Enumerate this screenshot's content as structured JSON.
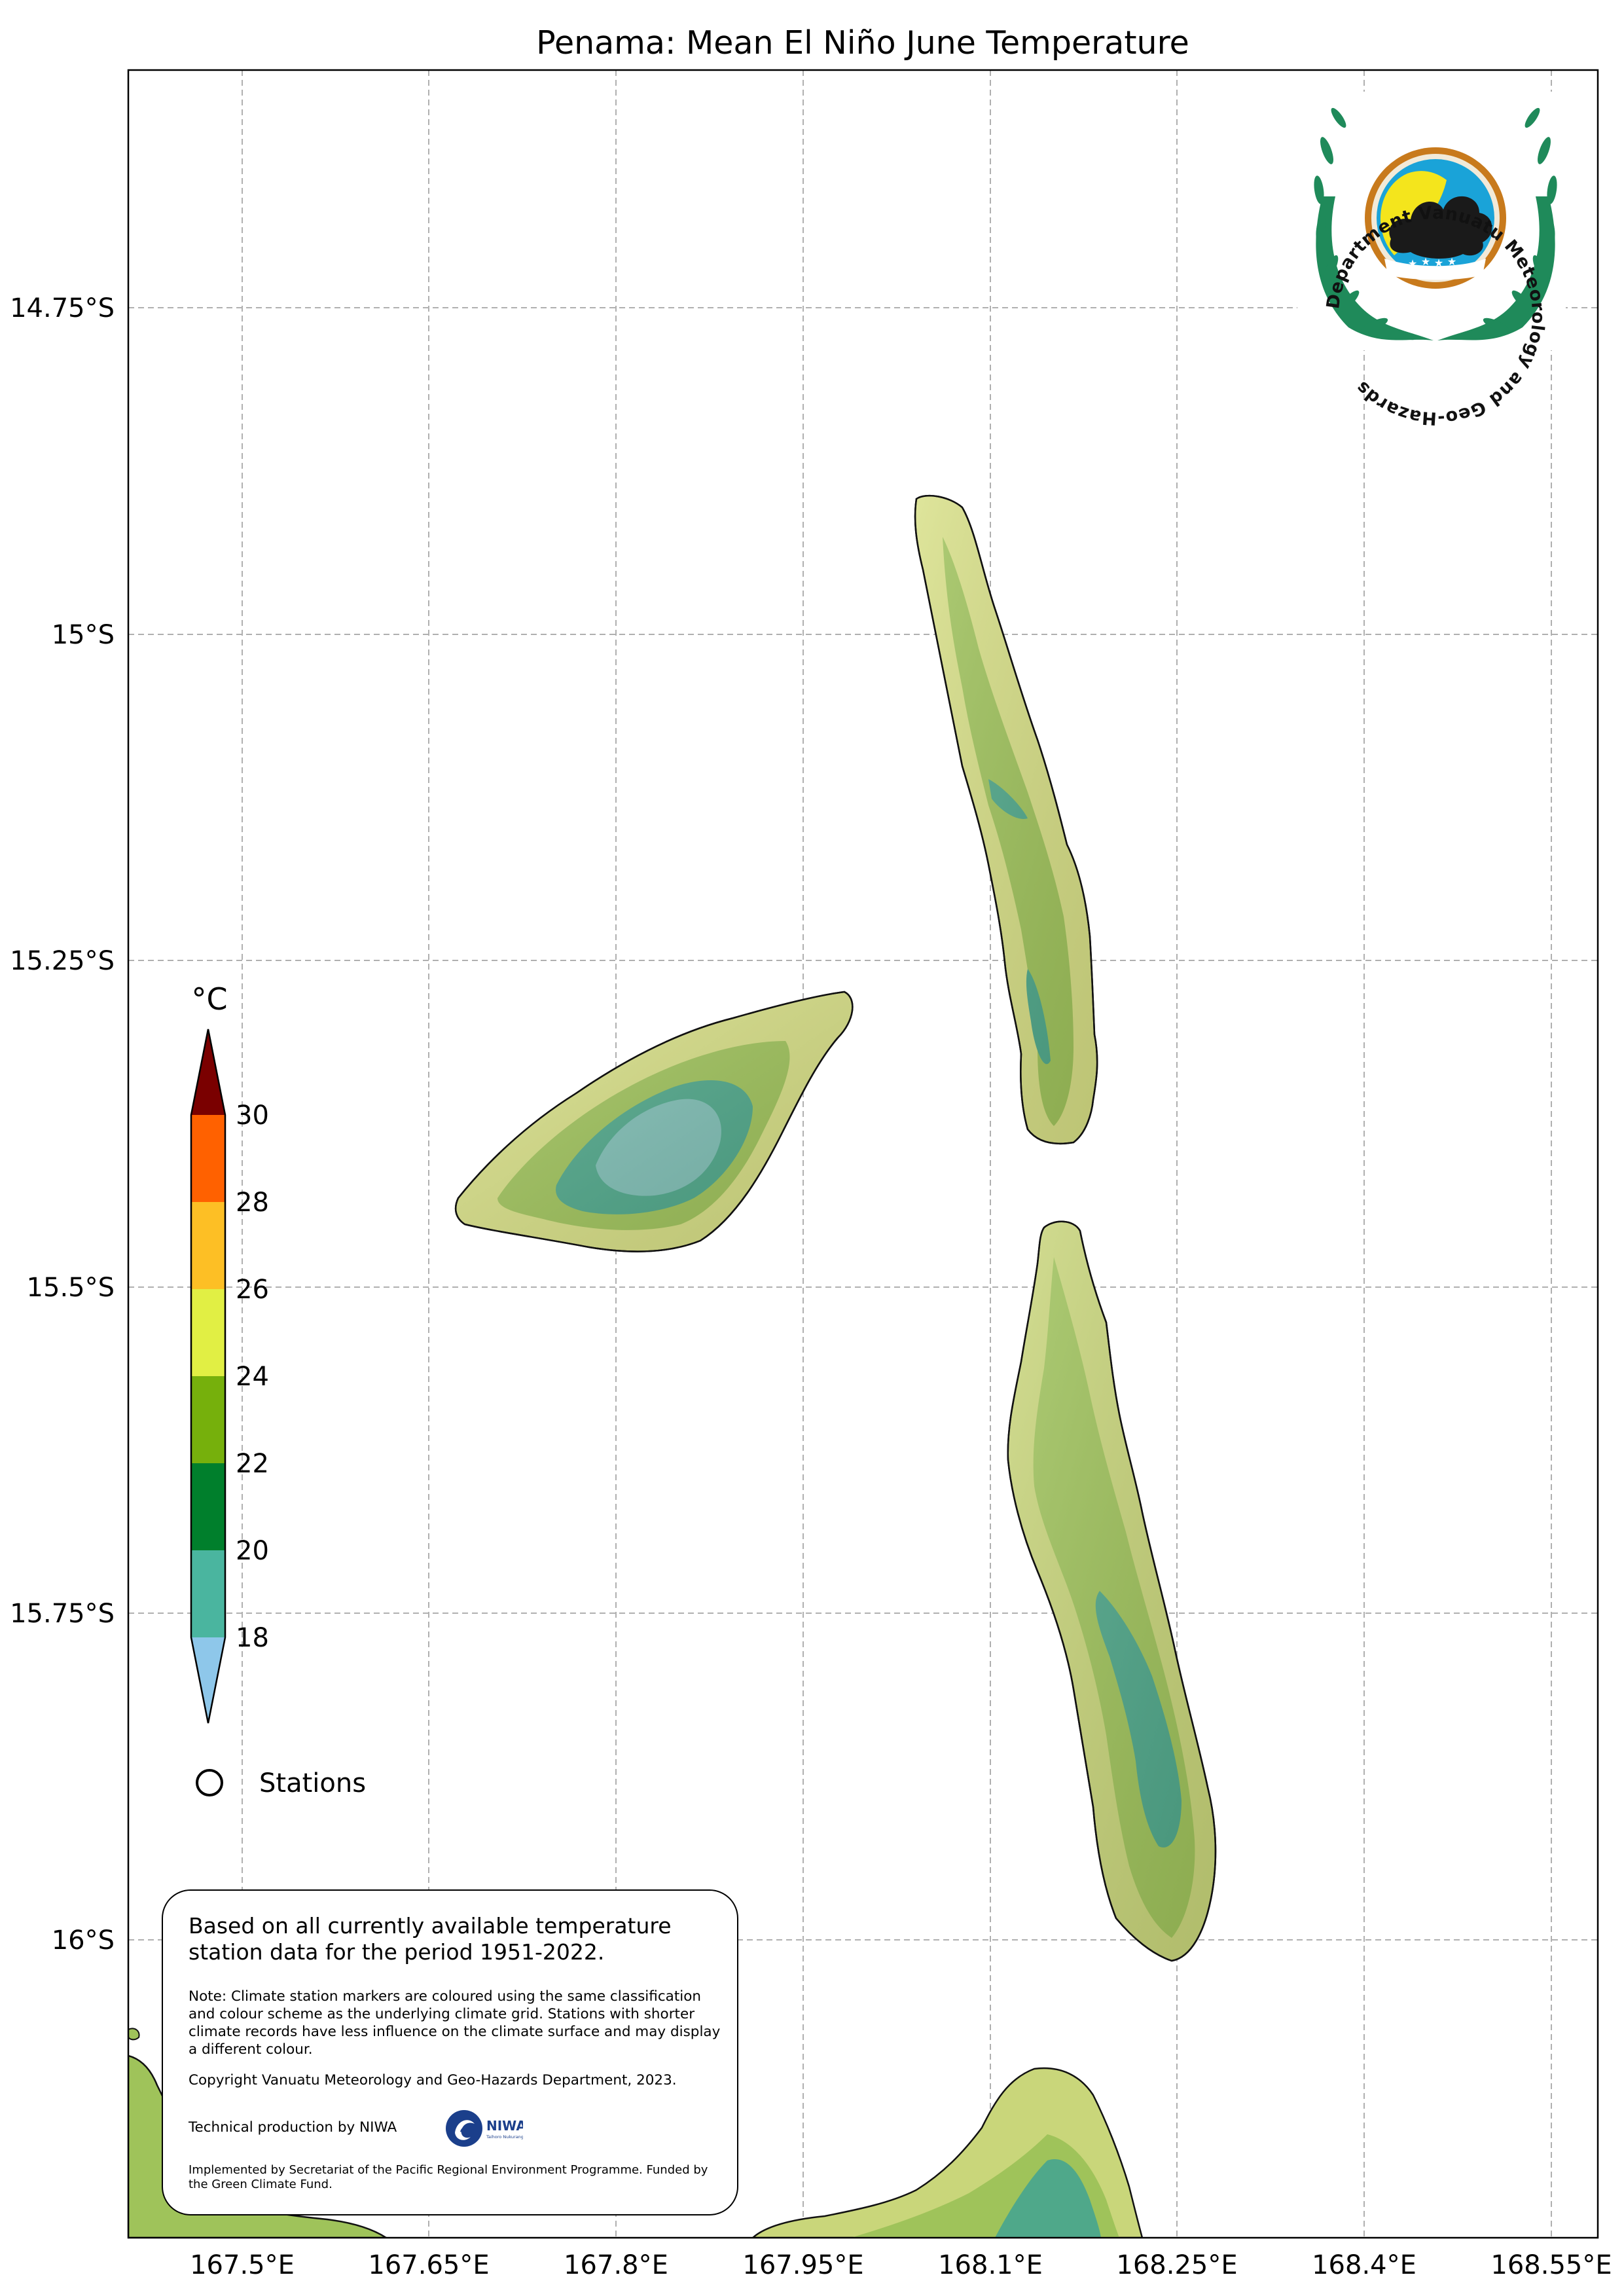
{
  "map": {
    "title": "Penama: Mean El Niño June Temperature",
    "lat_labels": [
      "14.75°S",
      "15°S",
      "15.25°S",
      "15.5°S",
      "15.75°S",
      "16°S"
    ],
    "lon_labels": [
      "167.5°E",
      "167.65°E",
      "167.8°E",
      "167.95°E",
      "168.1°E",
      "168.25°E",
      "168.4°E",
      "168.55°E"
    ],
    "extent": {
      "lon_min": 167.4,
      "lon_max": 168.57,
      "lat_north": 14.57,
      "lat_south": 16.23
    }
  },
  "legend": {
    "unit": "°C",
    "ticks": [
      "30",
      "28",
      "26",
      "24",
      "22",
      "20",
      "18"
    ],
    "bands": [
      {
        "range": "30+",
        "color": "#7a0000"
      },
      {
        "range": "28-30",
        "color": "#ff6100"
      },
      {
        "range": "26-28",
        "color": "#fdbf25"
      },
      {
        "range": "24-26",
        "color": "#e1ef44"
      },
      {
        "range": "22-24",
        "color": "#76b00c"
      },
      {
        "range": "20-22",
        "color": "#007f2c"
      },
      {
        "range": "18-20",
        "color": "#4ab59f"
      },
      {
        "range": "<18",
        "color": "#8ec7ea"
      }
    ],
    "stations_label": "Stations"
  },
  "info": {
    "main": "Based on all currently available temperature station data for the period 1951-2022.",
    "note": "Note: Climate station markers are coloured using the same classification and colour scheme as the underlying climate grid. Stations with shorter climate records have less influence on the climate surface and may display a different colour.",
    "copyright": "Copyright Vanuatu Meteorology and Geo-Hazards Department, 2023.",
    "technical": "Technical production by NIWA",
    "implemented": "Implemented by Secretariat of the Pacific Regional Environment Programme. Funded by the Green Climate Fund."
  },
  "logos": {
    "vmgd_text": "Department Vanuatu Meteorology and Geo-Hazards",
    "niwa_text": "NIWA",
    "niwa_tagline": "Taihoro Nukurangi"
  },
  "colors": {
    "land_base": "#b7c76d",
    "land_mid": "#95b44e",
    "land_cool": "#4fa88a",
    "land_coldest": "#7fbfb5",
    "grid": "#b0b0b0",
    "logo_green": "#1f8a5a",
    "logo_orange": "#c87a1c",
    "logo_blue": "#1aa3d8",
    "logo_yellow": "#f4e51c",
    "niwa_blue": "#1b3f8b"
  }
}
